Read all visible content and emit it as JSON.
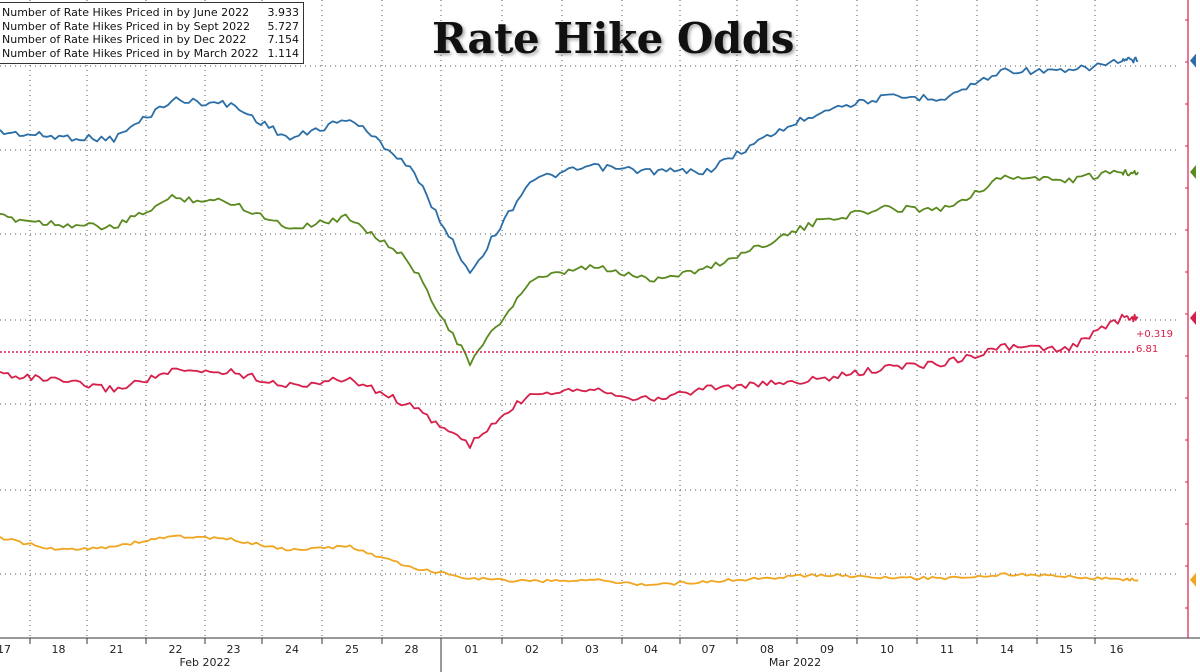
{
  "title": "Rate Hike Odds",
  "legend": [
    {
      "label": "Number of Rate Hikes Priced in by June 2022",
      "value": "3.933",
      "color": "#2b6ea6"
    },
    {
      "label": "Number of Rate Hikes Priced in by Sept 2022",
      "value": "5.727",
      "color": "#5a8a1f"
    },
    {
      "label": "Number of Rate Hikes Priced in by Dec 2022",
      "value": "7.154",
      "color": "#d6204b"
    },
    {
      "label": "Number of Rate Hikes Priced in by March 2022",
      "value": "1.114",
      "color": "#f0a620"
    }
  ],
  "annotations": {
    "change": "+0.319",
    "level": "6.81"
  },
  "chart_data": {
    "type": "line",
    "title": "Rate Hike Odds",
    "x": [
      "17",
      "18",
      "21",
      "22",
      "23",
      "24",
      "25",
      "28",
      "01",
      "02",
      "03",
      "04",
      "07",
      "08",
      "09",
      "10",
      "11",
      "14",
      "15",
      "16"
    ],
    "x_month_labels": [
      "Feb 2022",
      "Mar 2022"
    ],
    "grid": true,
    "legend_position": "top-left",
    "series": [
      {
        "name": "Number of Rate Hikes Priced in by June 2022",
        "color": "#2b6ea6",
        "values": [
          3.62,
          3.6,
          3.59,
          3.76,
          3.74,
          3.59,
          3.68,
          3.47,
          3.01,
          3.41,
          3.47,
          3.45,
          3.45,
          3.6,
          3.72,
          3.77,
          3.77,
          3.89,
          3.88,
          3.93
        ]
      },
      {
        "name": "Number of Rate Hikes Priced in by Sept 2022",
        "color": "#5a8a1f",
        "values": [
          5.52,
          5.49,
          5.47,
          5.61,
          5.59,
          5.47,
          5.52,
          5.31,
          4.84,
          5.22,
          5.29,
          5.23,
          5.28,
          5.4,
          5.51,
          5.56,
          5.56,
          5.71,
          5.69,
          5.73
        ]
      },
      {
        "name": "Number of Rate Hikes Priced in by Dec 2022",
        "color": "#d6204b",
        "values": [
          6.84,
          6.8,
          6.75,
          6.85,
          6.85,
          6.77,
          6.81,
          6.66,
          6.44,
          6.73,
          6.76,
          6.69,
          6.76,
          6.78,
          6.81,
          6.87,
          6.9,
          6.99,
          6.97,
          7.15
        ]
      },
      {
        "name": "Number of Rate Hikes Priced in by March 2022",
        "color": "#f0a620",
        "values": [
          1.35,
          1.28,
          1.3,
          1.36,
          1.34,
          1.28,
          1.3,
          1.18,
          1.12,
          1.1,
          1.11,
          1.08,
          1.1,
          1.12,
          1.14,
          1.12,
          1.12,
          1.14,
          1.13,
          1.11
        ]
      }
    ]
  }
}
